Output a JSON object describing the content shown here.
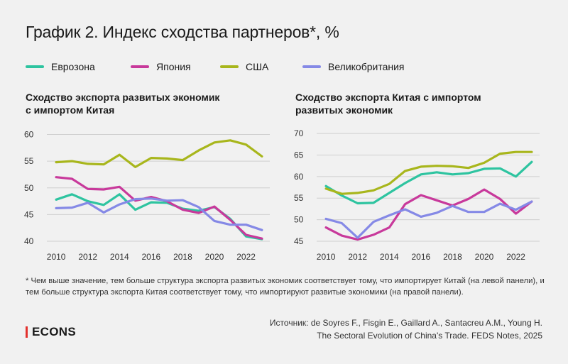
{
  "title": "График 2. Индекс сходства партнеров*, %",
  "legend": [
    {
      "name": "Еврозона",
      "color": "#2ec4a0"
    },
    {
      "name": "Япония",
      "color": "#c8399b"
    },
    {
      "name": "США",
      "color": "#a8b61c"
    },
    {
      "name": "Великобритания",
      "color": "#8589e6"
    }
  ],
  "panels": {
    "left": {
      "title_line1": "Сходство экспорта развитых экономик",
      "title_line2": "с импортом Китая"
    },
    "right": {
      "title_line1": "Сходство экспорта Китая с импортом",
      "title_line2": "развитых экономик"
    }
  },
  "chart_data": [
    {
      "type": "line",
      "title": "Сходство экспорта развитых экономик с импортом Китая",
      "x": [
        2010,
        2011,
        2012,
        2013,
        2014,
        2015,
        2016,
        2017,
        2018,
        2019,
        2020,
        2021,
        2022,
        2023
      ],
      "xticks": [
        2010,
        2012,
        2014,
        2016,
        2018,
        2020,
        2022
      ],
      "yticks": [
        40,
        45,
        50,
        55,
        60
      ],
      "ylim": [
        40,
        61
      ],
      "xlim": [
        2009.5,
        2023.5
      ],
      "grid": "horizontal",
      "series": [
        {
          "name": "Еврозона",
          "color": "#2ec4a0",
          "values": [
            47.8,
            48.8,
            47.5,
            46.8,
            48.8,
            45.9,
            47.3,
            47.2,
            46.1,
            45.7,
            46.4,
            44.2,
            40.9,
            40.4
          ]
        },
        {
          "name": "Япония",
          "color": "#c8399b",
          "values": [
            52.0,
            51.7,
            49.8,
            49.7,
            50.2,
            47.6,
            48.3,
            47.5,
            45.9,
            45.3,
            46.5,
            44.0,
            41.2,
            40.5
          ]
        },
        {
          "name": "США",
          "color": "#a8b61c",
          "values": [
            54.8,
            55.0,
            54.5,
            54.4,
            56.2,
            53.9,
            55.6,
            55.5,
            55.2,
            57.0,
            58.5,
            58.9,
            58.1,
            55.9
          ]
        },
        {
          "name": "Великобритания",
          "color": "#8589e6",
          "values": [
            46.2,
            46.3,
            47.2,
            45.4,
            46.9,
            47.9,
            48.0,
            47.6,
            47.7,
            46.4,
            43.8,
            43.1,
            43.1,
            42.1
          ]
        }
      ]
    },
    {
      "type": "line",
      "title": "Сходство экспорта Китая с импортом развитых экономик",
      "x": [
        2010,
        2011,
        2012,
        2013,
        2014,
        2015,
        2016,
        2017,
        2018,
        2019,
        2020,
        2021,
        2022,
        2023
      ],
      "xticks": [
        2010,
        2012,
        2014,
        2016,
        2018,
        2020,
        2022
      ],
      "yticks": [
        45,
        50,
        55,
        60,
        65,
        70
      ],
      "ylim": [
        45,
        71
      ],
      "xlim": [
        2009.5,
        2023.5
      ],
      "grid": "horizontal",
      "series": [
        {
          "name": "Еврозона",
          "color": "#2ec4a0",
          "values": [
            57.8,
            55.6,
            53.8,
            53.9,
            56.2,
            58.5,
            60.5,
            61.0,
            60.5,
            60.8,
            61.8,
            61.9,
            60.0,
            63.4
          ]
        },
        {
          "name": "Япония",
          "color": "#c8399b",
          "values": [
            48.2,
            46.3,
            45.4,
            46.5,
            48.2,
            53.6,
            55.7,
            54.5,
            53.3,
            54.8,
            57.0,
            54.8,
            51.4,
            54.2
          ]
        },
        {
          "name": "США",
          "color": "#a8b61c",
          "values": [
            57.2,
            56.0,
            56.2,
            56.8,
            58.3,
            61.3,
            62.3,
            62.5,
            62.4,
            62.0,
            63.2,
            65.3,
            65.7,
            65.7
          ]
        },
        {
          "name": "Великобритания",
          "color": "#8589e6",
          "values": [
            50.2,
            49.2,
            45.8,
            49.5,
            51.0,
            52.4,
            50.7,
            51.6,
            53.2,
            51.8,
            51.8,
            53.7,
            52.3,
            54.2
          ]
        }
      ]
    }
  ],
  "footnote": "* Чем выше значение, тем больше структура экспорта развитых экономик соответствует тому, что импортирует Китай (на левой панели), и тем больше структура экспорта Китая соответствует тому, что импортируют развитые экономики (на правой панели).",
  "brand": "ECONS",
  "source": {
    "line1": "Источник: de Soyres F., Fisgin E., Gaillard A., Santacreu A.M., Young H.",
    "line2": "The Sectoral Evolution of China's Trade. FEDS Notes, 2025"
  }
}
